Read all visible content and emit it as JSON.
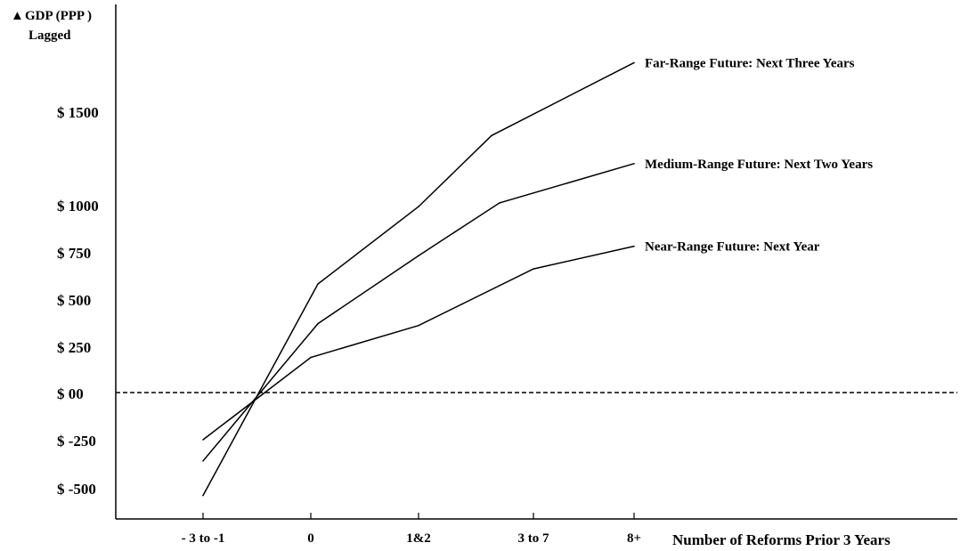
{
  "chart_data": {
    "type": "line",
    "y_axis_label_line1": "GDP (PPP )",
    "y_axis_label_line2": "Lagged",
    "y_axis_arrow": "▲",
    "x_axis_label": "Number of Reforms Prior 3 Years",
    "categories": [
      "- 3 to -1",
      "0",
      "1&2",
      "3 to 7",
      "8+"
    ],
    "y_ticks": [
      {
        "value": 1500,
        "label": "$ 1500"
      },
      {
        "value": 1000,
        "label": "$ 1000"
      },
      {
        "value": 750,
        "label": "$  750"
      },
      {
        "value": 500,
        "label": "$  500"
      },
      {
        "value": 250,
        "label": "$  250"
      },
      {
        "value": 0,
        "label": "$   00"
      },
      {
        "value": -250,
        "label": "$ -250"
      },
      {
        "value": -500,
        "label": "$ -500"
      }
    ],
    "zero_reference_line": {
      "value": 0,
      "style": "dashed"
    },
    "series": [
      {
        "name": "Far-Range Future: Next Three Years",
        "points": [
          {
            "x": "- 3 to -1",
            "y": -540
          },
          {
            "x": "0",
            "y": 580
          },
          {
            "x": "1&2",
            "y": 990
          },
          {
            "x": "3 to 7",
            "y": 1370
          },
          {
            "x": "8+",
            "y": 1760
          }
        ]
      },
      {
        "name": "Medium-Range Future: Next Two Years",
        "points": [
          {
            "x": "- 3 to -1",
            "y": -360
          },
          {
            "x": "0",
            "y": 370
          },
          {
            "x": "1&2",
            "y": 730
          },
          {
            "x": "3 to 7",
            "y": 1010
          },
          {
            "x": "8+",
            "y": 1220
          }
        ]
      },
      {
        "name": "Near-Range Future: Next Year",
        "points": [
          {
            "x": "- 3 to -1",
            "y": -250
          },
          {
            "x": "0",
            "y": 190
          },
          {
            "x": "1&2",
            "y": 360
          },
          {
            "x": "3 to 7",
            "y": 660
          },
          {
            "x": "8+",
            "y": 780
          }
        ]
      }
    ]
  }
}
